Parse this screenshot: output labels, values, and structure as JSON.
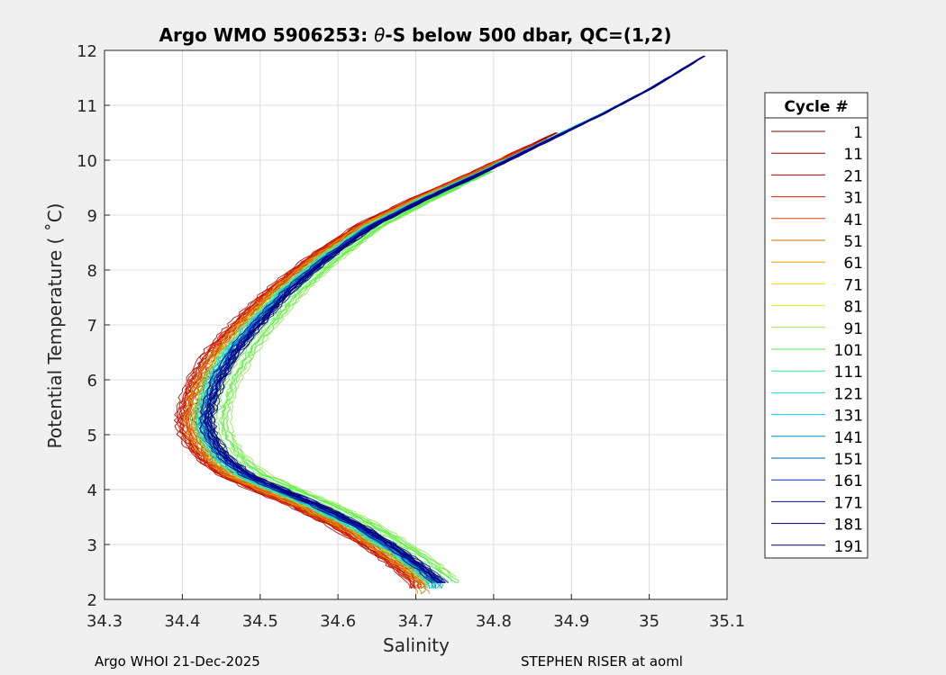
{
  "footer": {
    "left": "Argo WHOI 21-Dec-2025",
    "right": "STEPHEN RISER at aoml"
  },
  "chart_data": {
    "type": "line",
    "title": "Argo WMO 5906253: θ-S below 500 dbar,  QC=(1,2)",
    "title_parts": {
      "prefix": "Argo WMO 5906253: ",
      "theta": "θ",
      "suffix": "-S below 500 dbar,  QC=(1,2)"
    },
    "xlabel": "Salinity",
    "ylabel": "Potential Temperature ( ˚C)",
    "xlim": [
      34.3,
      35.1
    ],
    "ylim": [
      2,
      12
    ],
    "xticks": [
      34.3,
      34.4,
      34.5,
      34.6,
      34.7,
      34.8,
      34.9,
      35,
      35.1
    ],
    "xtick_labels": [
      "34.3",
      "34.4",
      "34.5",
      "34.6",
      "34.7",
      "34.8",
      "34.9",
      "35",
      "35.1"
    ],
    "yticks": [
      2,
      3,
      4,
      5,
      6,
      7,
      8,
      9,
      10,
      11,
      12
    ],
    "ytick_labels": [
      "2",
      "3",
      "4",
      "5",
      "6",
      "7",
      "8",
      "9",
      "10",
      "11",
      "12"
    ],
    "grid": true,
    "legend": {
      "title": "Cycle #",
      "placement": "right-outside",
      "entries": [
        {
          "label": "1",
          "color": "#7f0000"
        },
        {
          "label": "11",
          "color": "#a00000"
        },
        {
          "label": "21",
          "color": "#c00000"
        },
        {
          "label": "31",
          "color": "#dd1a00"
        },
        {
          "label": "41",
          "color": "#e84000"
        },
        {
          "label": "51",
          "color": "#d07000"
        },
        {
          "label": "61",
          "color": "#e0a000"
        },
        {
          "label": "71",
          "color": "#f0e000"
        },
        {
          "label": "81",
          "color": "#c8f020"
        },
        {
          "label": "91",
          "color": "#90ee40"
        },
        {
          "label": "101",
          "color": "#50f050"
        },
        {
          "label": "111",
          "color": "#30f0a0"
        },
        {
          "label": "121",
          "color": "#20e8d0"
        },
        {
          "label": "131",
          "color": "#10c8e8"
        },
        {
          "label": "141",
          "color": "#0090c8"
        },
        {
          "label": "151",
          "color": "#0060c0"
        },
        {
          "label": "161",
          "color": "#0030b0"
        },
        {
          "label": "171",
          "color": "#0010a0"
        },
        {
          "label": "181",
          "color": "#000090"
        },
        {
          "label": "191",
          "color": "#000080"
        }
      ]
    },
    "base_profile": {
      "s": [
        34.725,
        34.7,
        34.66,
        34.62,
        34.57,
        34.52,
        34.48,
        34.455,
        34.44,
        34.43,
        34.425,
        34.43,
        34.44,
        34.46,
        34.49,
        34.53,
        34.58,
        34.64,
        34.71,
        34.78,
        34.86,
        34.94,
        35.0,
        35.07
      ],
      "t": [
        2.3,
        2.6,
        3.0,
        3.35,
        3.7,
        4.0,
        4.25,
        4.5,
        4.75,
        5.0,
        5.25,
        5.6,
        6.0,
        6.5,
        7.0,
        7.6,
        8.2,
        8.8,
        9.3,
        9.75,
        10.3,
        10.85,
        11.3,
        11.9
      ]
    },
    "series": [
      {
        "name": "1",
        "color": "#7f0000",
        "ds": -0.005,
        "tmin": 2.3,
        "tmax": 6.2
      },
      {
        "name": "11",
        "color": "#a00000",
        "ds": -0.03,
        "tmin": 2.2,
        "tmax": 10.5
      },
      {
        "name": "21",
        "color": "#c00000",
        "ds": -0.025,
        "tmin": 2.2,
        "tmax": 10.4
      },
      {
        "name": "31",
        "color": "#dd1a00",
        "ds": -0.022,
        "tmin": 2.2,
        "tmax": 10.3
      },
      {
        "name": "41",
        "color": "#e84000",
        "ds": -0.02,
        "tmin": 2.2,
        "tmax": 10.2
      },
      {
        "name": "51",
        "color": "#d07000",
        "ds": -0.018,
        "tmin": 2.1,
        "tmax": 10.0
      },
      {
        "name": "61",
        "color": "#e0a000",
        "ds": -0.014,
        "tmin": 2.2,
        "tmax": 9.5
      },
      {
        "name": "71",
        "color": "#f0e000",
        "ds": -0.005,
        "tmin": 2.3,
        "tmax": 9.0
      },
      {
        "name": "81",
        "color": "#c8f020",
        "ds": 0.01,
        "tmin": 2.4,
        "tmax": 9.3
      },
      {
        "name": "91",
        "color": "#90ee40",
        "ds": 0.03,
        "tmin": 2.4,
        "tmax": 9.5
      },
      {
        "name": "101",
        "color": "#50f050",
        "ds": 0.025,
        "tmin": 2.3,
        "tmax": 9.8
      },
      {
        "name": "111",
        "color": "#30f0a0",
        "ds": -0.005,
        "tmin": 2.2,
        "tmax": 10.8
      },
      {
        "name": "121",
        "color": "#20e8d0",
        "ds": -0.002,
        "tmin": 2.2,
        "tmax": 11.2
      },
      {
        "name": "131",
        "color": "#10c8e8",
        "ds": 0.0,
        "tmin": 2.2,
        "tmax": 11.0
      },
      {
        "name": "141",
        "color": "#0090c8",
        "ds": 0.002,
        "tmin": 2.2,
        "tmax": 10.9
      },
      {
        "name": "151",
        "color": "#0060c0",
        "ds": 0.004,
        "tmin": 2.3,
        "tmax": 11.3
      },
      {
        "name": "161",
        "color": "#0030b0",
        "ds": 0.006,
        "tmin": 2.3,
        "tmax": 11.5
      },
      {
        "name": "171",
        "color": "#0010a0",
        "ds": 0.008,
        "tmin": 2.3,
        "tmax": 11.7
      },
      {
        "name": "181",
        "color": "#000090",
        "ds": 0.01,
        "tmin": 2.3,
        "tmax": 11.8
      },
      {
        "name": "191",
        "color": "#000080",
        "ds": 0.005,
        "tmin": 2.3,
        "tmax": 11.9
      }
    ]
  }
}
